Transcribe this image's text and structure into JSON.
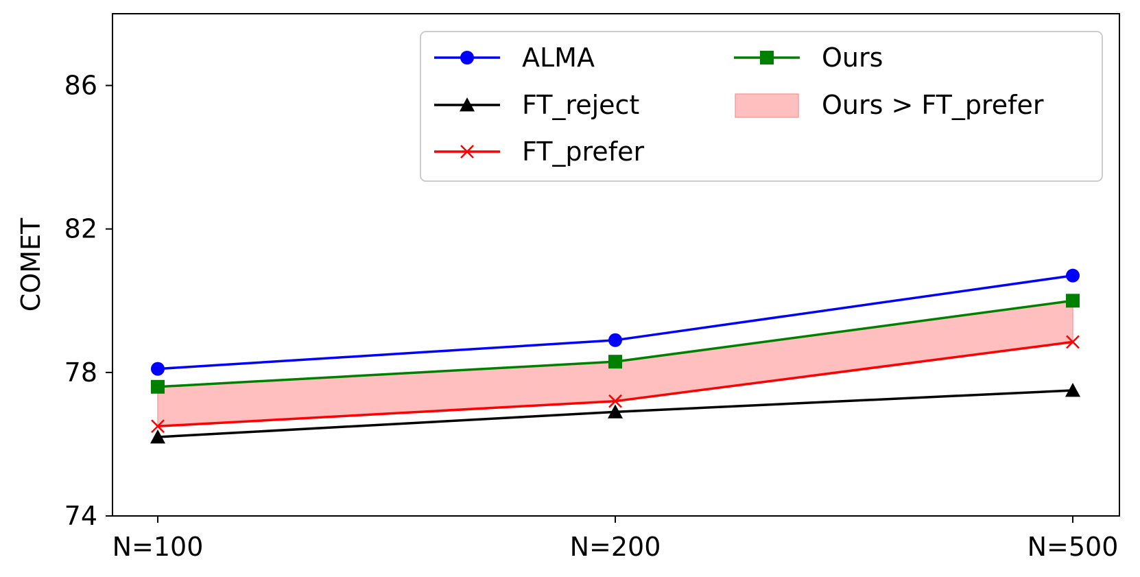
{
  "chart_data": {
    "type": "line",
    "categories": [
      "N=100",
      "N=200",
      "N=500"
    ],
    "ylabel": "COMET",
    "xlabel": "",
    "ylim": [
      74,
      88
    ],
    "yticks": [
      74,
      78,
      82,
      86
    ],
    "grid": false,
    "legend_position": "top-right",
    "series": [
      {
        "name": "ALMA",
        "values": [
          78.1,
          78.9,
          80.7
        ],
        "color": "#0000ff",
        "marker": "circle"
      },
      {
        "name": "FT_reject",
        "values": [
          76.2,
          76.9,
          77.5
        ],
        "color": "#000000",
        "marker": "triangle"
      },
      {
        "name": "FT_prefer",
        "values": [
          76.5,
          77.2,
          78.85
        ],
        "color": "#ff0000",
        "marker": "x"
      },
      {
        "name": "Ours",
        "values": [
          77.6,
          78.3,
          80.0
        ],
        "color": "#008000",
        "marker": "square"
      }
    ],
    "fill_between": {
      "name": "Ours > FT_prefer",
      "upper_series": "Ours",
      "lower_series": "FT_prefer",
      "color": "#ffbfbf"
    }
  }
}
